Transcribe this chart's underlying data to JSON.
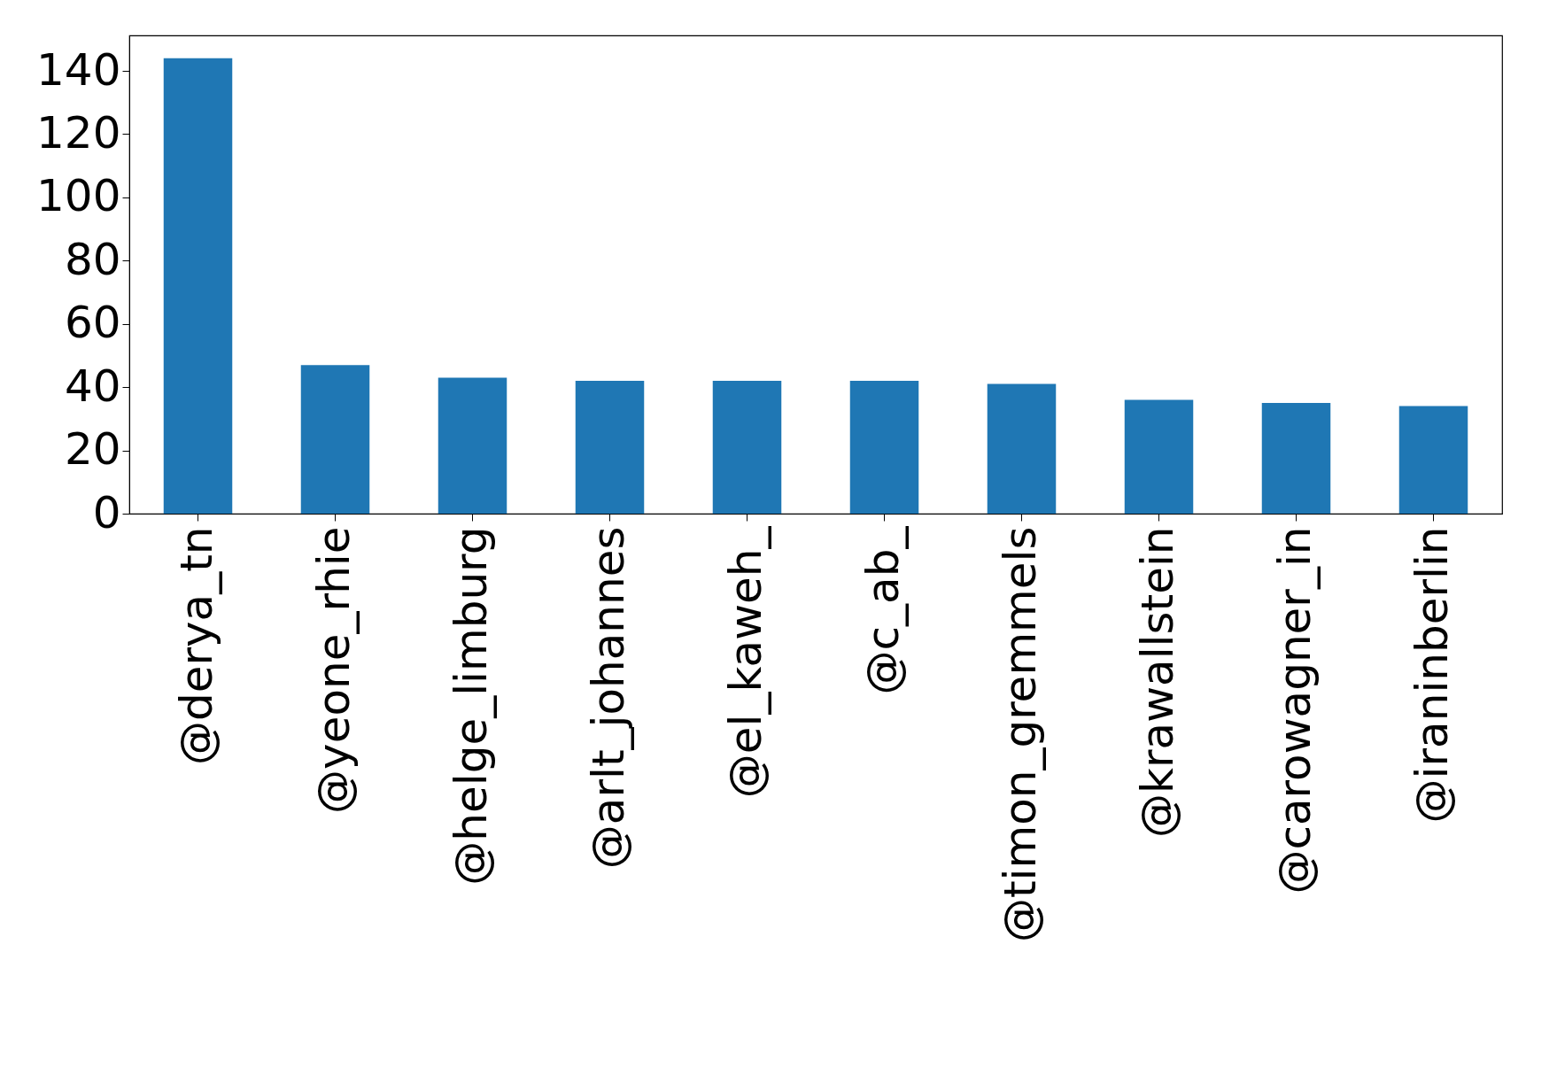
{
  "chart_data": {
    "type": "bar",
    "categories": [
      "@derya_tn",
      "@yeone_rhie",
      "@helge_limburg",
      "@arlt_johannes",
      "@el_kaweh_",
      "@c_ab_",
      "@timon_gremmels",
      "@krawallstein",
      "@carowagner_in",
      "@iraninberlin"
    ],
    "values": [
      144,
      47,
      43,
      42,
      42,
      42,
      41,
      36,
      35,
      34
    ],
    "color": "#1f77b4",
    "ylim": [
      0,
      151.2
    ],
    "yticks": [
      0,
      20,
      40,
      60,
      80,
      100,
      120,
      140
    ],
    "grid": false
  }
}
